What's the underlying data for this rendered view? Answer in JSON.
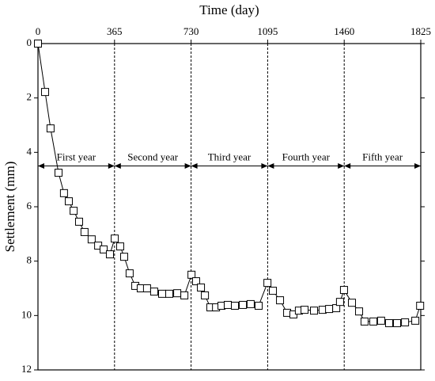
{
  "chart_data": {
    "type": "line",
    "xlabel": "Time (day)",
    "ylabel": "Settlement (mm)",
    "x_axis_position": "top",
    "y_inverted": true,
    "xlim": [
      0,
      1825
    ],
    "xticks": [
      0,
      365,
      730,
      1095,
      1460,
      1825
    ],
    "ylim": [
      0,
      12
    ],
    "yticks": [
      0,
      2,
      4,
      6,
      8,
      10,
      12
    ],
    "dividers": [
      365,
      730,
      1095,
      1460
    ],
    "annotations": [
      {
        "text": "First year",
        "x": [
          0,
          365
        ],
        "y": 4.5
      },
      {
        "text": "Second year",
        "x": [
          365,
          730
        ],
        "y": 4.5
      },
      {
        "text": "Third year",
        "x": [
          730,
          1095
        ],
        "y": 4.5
      },
      {
        "text": "Fourth year",
        "x": [
          1095,
          1460
        ],
        "y": 4.5
      },
      {
        "text": "Fifth year",
        "x": [
          1460,
          1825
        ],
        "y": 4.5
      }
    ],
    "series": [
      {
        "color": "#000000",
        "marker": "square",
        "x": [
          0,
          34,
          60,
          98,
          124,
          147,
          170,
          196,
          222,
          256,
          287,
          313,
          343,
          366,
          392,
          411,
          437,
          464,
          490,
          520,
          554,
          592,
          626,
          664,
          698,
          732,
          754,
          777,
          796,
          822,
          849,
          875,
          905,
          939,
          977,
          1014,
          1052,
          1094,
          1120,
          1154,
          1188,
          1218,
          1244,
          1271,
          1316,
          1357,
          1388,
          1422,
          1440,
          1459,
          1497,
          1531,
          1557,
          1599,
          1636,
          1674,
          1712,
          1750,
          1799,
          1822
        ],
        "values": [
          0,
          1.78,
          3.12,
          4.75,
          5.5,
          5.8,
          6.15,
          6.55,
          6.93,
          7.2,
          7.43,
          7.57,
          7.75,
          7.17,
          7.46,
          7.84,
          8.45,
          8.91,
          9.0,
          9.0,
          9.12,
          9.2,
          9.2,
          9.18,
          9.26,
          8.5,
          8.74,
          8.97,
          9.26,
          9.7,
          9.7,
          9.64,
          9.61,
          9.64,
          9.61,
          9.58,
          9.64,
          8.8,
          9.09,
          9.44,
          9.9,
          9.96,
          9.82,
          9.79,
          9.82,
          9.79,
          9.76,
          9.73,
          9.5,
          9.06,
          9.53,
          9.85,
          10.22,
          10.22,
          10.19,
          10.28,
          10.28,
          10.25,
          10.19,
          9.64
        ]
      }
    ]
  }
}
